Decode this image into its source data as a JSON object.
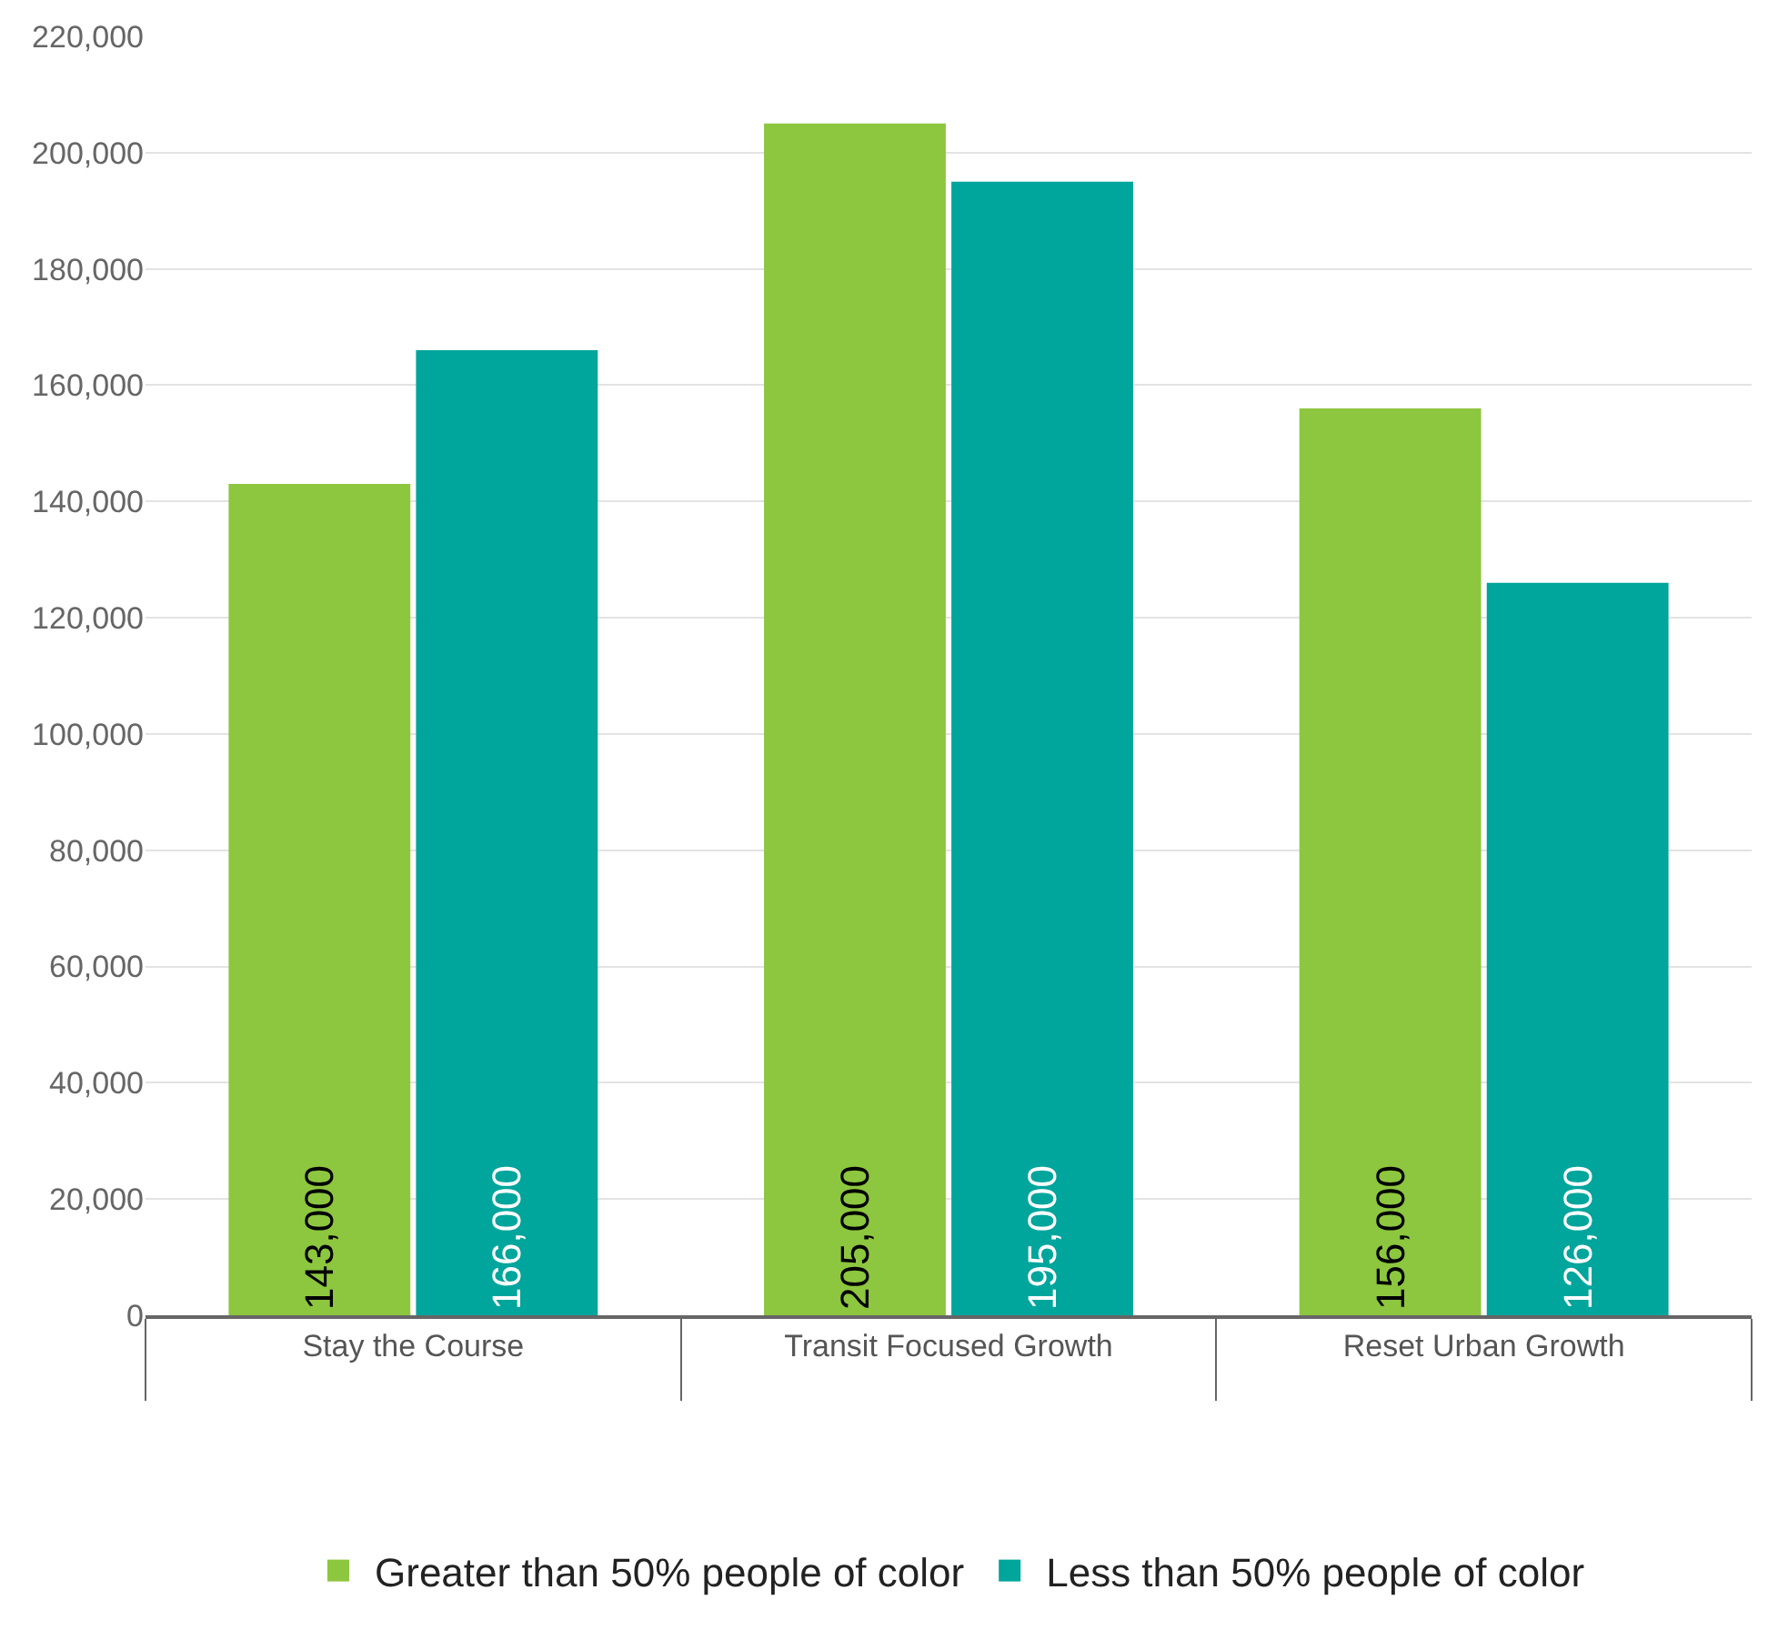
{
  "chart_data": {
    "type": "bar",
    "categories": [
      "Stay the Course",
      "Transit Focused Growth",
      "Reset Urban Growth"
    ],
    "series": [
      {
        "name": "Greater than 50% people of color",
        "color": "#8dc63f",
        "values": [
          143000,
          205000,
          156000
        ],
        "value_labels": [
          "143,000",
          "205,000",
          "156,000"
        ]
      },
      {
        "name": "Less than 50% people of color",
        "color": "#00a59c",
        "values": [
          166000,
          195000,
          126000
        ],
        "value_labels": [
          "166,000",
          "195,000",
          "126,000"
        ]
      }
    ],
    "ylim": [
      0,
      220000
    ],
    "yticks": [
      0,
      {
        "value": 20000,
        "label": "20,000"
      },
      {
        "value": 40000,
        "label": "40,000"
      },
      {
        "value": 60000,
        "label": "60,000"
      },
      {
        "value": 80000,
        "label": "80,000"
      },
      {
        "value": 100000,
        "label": "100,000"
      },
      {
        "value": 120000,
        "label": "120,000"
      },
      {
        "value": 140000,
        "label": "140,000"
      },
      {
        "value": 160000,
        "label": "160,000"
      },
      {
        "value": 180000,
        "label": "180,000"
      },
      {
        "value": 200000,
        "label": "200,000"
      },
      {
        "value": 220000,
        "label": "220,000"
      }
    ],
    "grid": "y",
    "legend": "bottom"
  }
}
